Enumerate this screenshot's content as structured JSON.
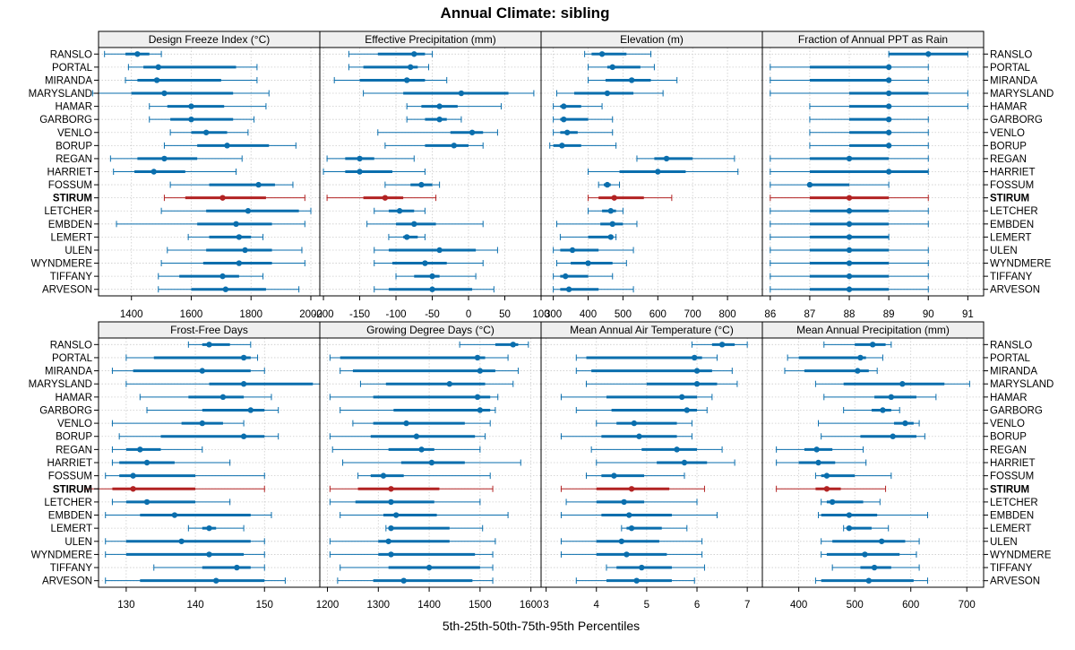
{
  "chart_data": {
    "type": "dot-interval",
    "title": "Annual Climate: sibling",
    "xlabel": "5th-25th-50th-75th-95th Percentiles",
    "sites": [
      "RANSLO",
      "PORTAL",
      "MIRANDA",
      "MARYSLAND",
      "HAMAR",
      "GARBORG",
      "VENLO",
      "BORUP",
      "REGAN",
      "HARRIET",
      "FOSSUM",
      "STIRUM",
      "LETCHER",
      "EMBDEN",
      "LEMERT",
      "ULEN",
      "WYNDMERE",
      "TIFFANY",
      "ARVESON"
    ],
    "highlight": "STIRUM",
    "colors": {
      "normal": "#0a6ead",
      "highlight": "#b22222",
      "strip": "#efefef"
    },
    "panels": [
      {
        "name": "Design Freeze Index (°C)",
        "xlim": [
          1290,
          2030
        ],
        "ticks": [
          1400,
          1600,
          1800,
          2000
        ],
        "data": [
          [
            1310,
            1380,
            1420,
            1460,
            1500
          ],
          [
            1390,
            1440,
            1490,
            1750,
            1820
          ],
          [
            1380,
            1420,
            1485,
            1700,
            1820
          ],
          [
            1270,
            1400,
            1510,
            1740,
            1860
          ],
          [
            1460,
            1520,
            1600,
            1710,
            1850
          ],
          [
            1460,
            1530,
            1600,
            1740,
            1810
          ],
          [
            1530,
            1600,
            1650,
            1720,
            1790
          ],
          [
            1510,
            1620,
            1720,
            1860,
            1950
          ],
          [
            1330,
            1420,
            1510,
            1620,
            1770
          ],
          [
            1340,
            1410,
            1475,
            1580,
            1750
          ],
          [
            1530,
            1660,
            1825,
            1880,
            1940
          ],
          [
            1510,
            1580,
            1705,
            1850,
            1980
          ],
          [
            1500,
            1650,
            1790,
            1960,
            2000
          ],
          [
            1350,
            1620,
            1750,
            1870,
            1980
          ],
          [
            1590,
            1660,
            1760,
            1800,
            1840
          ],
          [
            1520,
            1650,
            1780,
            1870,
            1970
          ],
          [
            1500,
            1640,
            1760,
            1870,
            1980
          ],
          [
            1490,
            1560,
            1705,
            1760,
            1840
          ],
          [
            1490,
            1600,
            1715,
            1850,
            1960
          ]
        ]
      },
      {
        "name": "Effective Precipitation (mm)",
        "xlim": [
          -205,
          100
        ],
        "ticks": [
          -200,
          -150,
          -100,
          -50,
          0,
          50,
          100
        ],
        "data": [
          [
            -165,
            -125,
            -75,
            -60,
            -50
          ],
          [
            -165,
            -145,
            -80,
            -70,
            -55
          ],
          [
            -185,
            -150,
            -85,
            -60,
            -30
          ],
          [
            -145,
            -90,
            -10,
            55,
            90
          ],
          [
            -85,
            -65,
            -40,
            -15,
            45
          ],
          [
            -85,
            -60,
            -40,
            -30,
            -10
          ],
          [
            -125,
            -25,
            5,
            20,
            40
          ],
          [
            -115,
            -60,
            -20,
            0,
            20
          ],
          [
            -195,
            -170,
            -150,
            -130,
            -75
          ],
          [
            -200,
            -170,
            -150,
            -105,
            -60
          ],
          [
            -115,
            -80,
            -65,
            -50,
            -40
          ],
          [
            -195,
            -145,
            -115,
            -90,
            -45
          ],
          [
            -130,
            -110,
            -95,
            -75,
            -60
          ],
          [
            -140,
            -100,
            -75,
            -45,
            20
          ],
          [
            -110,
            -90,
            -85,
            -70,
            -60
          ],
          [
            -130,
            -110,
            -40,
            10,
            40
          ],
          [
            -130,
            -105,
            -60,
            -30,
            20
          ],
          [
            -100,
            -75,
            -50,
            -40,
            10
          ],
          [
            -130,
            -110,
            -50,
            5,
            35
          ]
        ]
      },
      {
        "name": "Elevation (m)",
        "xlim": [
          265,
          900
        ],
        "ticks": [
          300,
          400,
          500,
          600,
          700,
          800
        ],
        "data": [
          [
            390,
            410,
            440,
            510,
            580
          ],
          [
            400,
            455,
            470,
            550,
            590
          ],
          [
            400,
            450,
            525,
            580,
            655
          ],
          [
            310,
            360,
            455,
            530,
            615
          ],
          [
            300,
            320,
            330,
            380,
            440
          ],
          [
            300,
            320,
            330,
            400,
            470
          ],
          [
            300,
            320,
            340,
            370,
            470
          ],
          [
            290,
            300,
            325,
            380,
            480
          ],
          [
            540,
            590,
            625,
            700,
            820
          ],
          [
            400,
            490,
            600,
            680,
            830
          ],
          [
            430,
            445,
            455,
            465,
            490
          ],
          [
            400,
            430,
            475,
            560,
            640
          ],
          [
            400,
            440,
            465,
            480,
            500
          ],
          [
            310,
            435,
            470,
            500,
            540
          ],
          [
            320,
            400,
            465,
            470,
            480
          ],
          [
            300,
            320,
            355,
            430,
            530
          ],
          [
            310,
            350,
            400,
            470,
            510
          ],
          [
            300,
            320,
            335,
            400,
            470
          ],
          [
            300,
            320,
            345,
            430,
            530
          ]
        ]
      },
      {
        "name": "Fraction of Annual PPT as Rain",
        "xlim": [
          85.8,
          91.4
        ],
        "ticks": [
          86,
          87,
          88,
          89,
          90,
          91
        ],
        "data": [
          [
            89,
            89,
            90,
            91,
            91
          ],
          [
            86,
            87,
            89,
            89,
            90
          ],
          [
            86,
            87,
            89,
            89,
            90
          ],
          [
            86,
            88,
            89,
            90,
            91
          ],
          [
            87,
            88,
            89,
            89,
            91
          ],
          [
            87,
            88,
            89,
            89,
            90
          ],
          [
            87,
            88,
            89,
            89,
            90
          ],
          [
            87,
            88,
            89,
            89,
            90
          ],
          [
            86,
            87,
            88,
            89,
            90
          ],
          [
            86,
            87,
            89,
            90,
            90
          ],
          [
            86,
            87,
            87,
            88,
            89
          ],
          [
            86,
            87,
            88,
            89,
            90
          ],
          [
            86,
            87,
            88,
            89,
            90
          ],
          [
            86,
            87,
            88,
            89,
            90
          ],
          [
            86,
            87,
            88,
            89,
            89
          ],
          [
            86,
            87,
            88,
            89,
            90
          ],
          [
            86,
            87,
            88,
            89,
            90
          ],
          [
            86,
            87,
            88,
            89,
            90
          ],
          [
            86,
            87,
            88,
            89,
            90
          ]
        ]
      },
      {
        "name": "Frost-Free Days",
        "xlim": [
          126,
          158
        ],
        "ticks": [
          130,
          140,
          150
        ],
        "data": [
          [
            139,
            141,
            142,
            145,
            148
          ],
          [
            130,
            134,
            147,
            148,
            149
          ],
          [
            128,
            131,
            141,
            148,
            150
          ],
          [
            130,
            142,
            147,
            157,
            160
          ],
          [
            132,
            139,
            144,
            147,
            151
          ],
          [
            133,
            141,
            148,
            150,
            152
          ],
          [
            128,
            138,
            141,
            144,
            147
          ],
          [
            129,
            135,
            147,
            150,
            152
          ],
          [
            128,
            130,
            132,
            135,
            141
          ],
          [
            128,
            129,
            133,
            137,
            145
          ],
          [
            127,
            129,
            131,
            140,
            150
          ],
          [
            124,
            128,
            131,
            140,
            150
          ],
          [
            128,
            130,
            133,
            140,
            145
          ],
          [
            127,
            132,
            137,
            148,
            151
          ],
          [
            139,
            141,
            142,
            143,
            147
          ],
          [
            127,
            130,
            138,
            148,
            150
          ],
          [
            127,
            130,
            142,
            147,
            150
          ],
          [
            134,
            141,
            146,
            148,
            150
          ],
          [
            127,
            132,
            143,
            150,
            153
          ]
        ]
      },
      {
        "name": "Growing Degree Days (°C)",
        "xlim": [
          1185,
          1620
        ],
        "ticks": [
          1200,
          1300,
          1400,
          1500,
          1600
        ],
        "data": [
          [
            1460,
            1530,
            1565,
            1575,
            1595
          ],
          [
            1205,
            1225,
            1495,
            1510,
            1555
          ],
          [
            1225,
            1250,
            1500,
            1530,
            1575
          ],
          [
            1265,
            1315,
            1440,
            1510,
            1565
          ],
          [
            1205,
            1290,
            1495,
            1520,
            1535
          ],
          [
            1225,
            1330,
            1500,
            1520,
            1530
          ],
          [
            1250,
            1290,
            1355,
            1470,
            1520
          ],
          [
            1205,
            1285,
            1375,
            1490,
            1510
          ],
          [
            1210,
            1320,
            1385,
            1410,
            1500
          ],
          [
            1230,
            1345,
            1405,
            1470,
            1580
          ],
          [
            1260,
            1285,
            1310,
            1350,
            1520
          ],
          [
            1205,
            1260,
            1325,
            1420,
            1525
          ],
          [
            1205,
            1255,
            1325,
            1410,
            1500
          ],
          [
            1225,
            1310,
            1335,
            1415,
            1555
          ],
          [
            1315,
            1320,
            1325,
            1440,
            1505
          ],
          [
            1205,
            1300,
            1320,
            1440,
            1530
          ],
          [
            1205,
            1300,
            1325,
            1490,
            1525
          ],
          [
            1225,
            1320,
            1400,
            1500,
            1525
          ],
          [
            1220,
            1290,
            1350,
            1485,
            1525
          ]
        ]
      },
      {
        "name": "Mean Annual Air Temperature (°C)",
        "xlim": [
          2.9,
          7.3
        ],
        "ticks": [
          3,
          4,
          5,
          6,
          7
        ],
        "data": [
          [
            5.9,
            6.3,
            6.5,
            6.75,
            7.0
          ],
          [
            3.6,
            3.8,
            5.95,
            6.1,
            6.4
          ],
          [
            3.6,
            3.9,
            6.0,
            6.3,
            6.7
          ],
          [
            3.8,
            5.0,
            6.0,
            6.4,
            6.8
          ],
          [
            3.3,
            4.2,
            5.7,
            6.0,
            6.3
          ],
          [
            3.6,
            4.3,
            5.8,
            6.0,
            6.2
          ],
          [
            4.0,
            4.4,
            4.75,
            5.6,
            5.9
          ],
          [
            3.3,
            4.1,
            4.85,
            5.6,
            5.9
          ],
          [
            3.9,
            4.9,
            5.6,
            6.0,
            6.5
          ],
          [
            4.0,
            5.2,
            5.75,
            6.2,
            6.75
          ],
          [
            3.8,
            4.1,
            4.35,
            4.95,
            5.75
          ],
          [
            3.3,
            4.0,
            4.7,
            5.45,
            6.15
          ],
          [
            3.4,
            4.0,
            4.55,
            4.95,
            6.0
          ],
          [
            3.3,
            4.1,
            4.65,
            5.5,
            6.4
          ],
          [
            4.5,
            4.6,
            4.7,
            5.3,
            5.8
          ],
          [
            3.3,
            4.0,
            4.5,
            5.25,
            6.1
          ],
          [
            3.3,
            4.0,
            4.6,
            5.4,
            6.1
          ],
          [
            4.2,
            4.4,
            4.9,
            5.5,
            6.15
          ],
          [
            3.6,
            4.2,
            4.8,
            5.5,
            5.95
          ]
        ]
      },
      {
        "name": "Mean Annual Precipitation (mm)",
        "xlim": [
          335,
          730
        ],
        "ticks": [
          400,
          500,
          600,
          700
        ],
        "data": [
          [
            445,
            500,
            532,
            555,
            565
          ],
          [
            380,
            400,
            510,
            520,
            550
          ],
          [
            375,
            410,
            505,
            525,
            540
          ],
          [
            430,
            480,
            585,
            660,
            705
          ],
          [
            445,
            535,
            565,
            610,
            645
          ],
          [
            480,
            530,
            550,
            565,
            580
          ],
          [
            435,
            570,
            590,
            605,
            615
          ],
          [
            440,
            510,
            568,
            610,
            625
          ],
          [
            360,
            410,
            432,
            460,
            515
          ],
          [
            360,
            400,
            435,
            465,
            520
          ],
          [
            430,
            440,
            450,
            500,
            565
          ],
          [
            360,
            430,
            450,
            475,
            555
          ],
          [
            440,
            450,
            460,
            515,
            545
          ],
          [
            435,
            440,
            490,
            540,
            630
          ],
          [
            480,
            485,
            490,
            530,
            560
          ],
          [
            440,
            460,
            548,
            590,
            615
          ],
          [
            440,
            450,
            518,
            580,
            610
          ],
          [
            460,
            510,
            535,
            565,
            615
          ],
          [
            430,
            440,
            525,
            605,
            630
          ]
        ]
      }
    ]
  }
}
